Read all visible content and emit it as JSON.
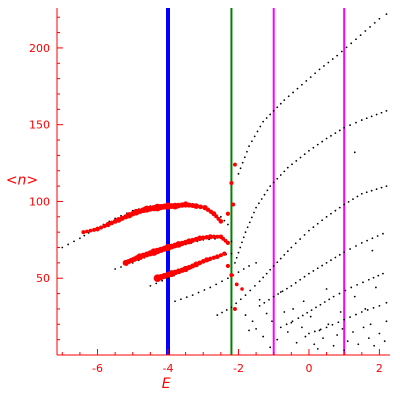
{
  "chart_data": {
    "type": "scatter",
    "title": "",
    "xlabel": "E",
    "ylabel": "<n>",
    "xlim": [
      -7.15,
      2.3
    ],
    "ylim": [
      0,
      226
    ],
    "grid": false,
    "x_ticks": [
      -6,
      -4,
      -2,
      0,
      2
    ],
    "y_ticks": [
      50,
      100,
      150,
      200
    ],
    "x_tick_labels": [
      "-6",
      "-4",
      "-2",
      "0",
      "2"
    ],
    "y_tick_labels": [
      "50",
      "100",
      "150",
      "200"
    ],
    "colors": {
      "axis": "#ff0000",
      "highlighted_points": "#ff0000",
      "points": "#000000",
      "line_blue": "#0000ff",
      "line_green": "#008000",
      "line_magenta": "#ff00ff"
    },
    "vertical_lines": [
      {
        "x": -4.0,
        "color": "#0000ff",
        "width": 4
      },
      {
        "x": -2.2,
        "color": "#008000",
        "width": 2
      },
      {
        "x": -1.0,
        "color": "#ff00ff",
        "width": 2
      },
      {
        "x": 1.0,
        "color": "#ff00ff",
        "width": 2
      }
    ],
    "branches": [
      {
        "color": "#000000",
        "size_scale": 0,
        "points": [
          [
            -7.0,
            70
          ],
          [
            -6.5,
            76
          ],
          [
            -6.0,
            83
          ],
          [
            -5.5,
            89
          ],
          [
            -5.0,
            94
          ],
          [
            -4.5,
            97
          ],
          [
            -4.0,
            98
          ],
          [
            -3.5,
            98
          ],
          [
            -3.0,
            96
          ],
          [
            -2.5,
            90
          ],
          [
            -2.3,
            85
          ]
        ]
      },
      {
        "color": "#000000",
        "size_scale": 0,
        "points": [
          [
            -5.5,
            56
          ],
          [
            -5.0,
            60
          ],
          [
            -4.5,
            65
          ],
          [
            -4.0,
            69
          ],
          [
            -3.5,
            72
          ],
          [
            -3.0,
            75
          ],
          [
            -2.5,
            76
          ],
          [
            -2.2,
            74
          ]
        ]
      },
      {
        "color": "#000000",
        "size_scale": 0,
        "points": [
          [
            -4.5,
            45
          ],
          [
            -4.0,
            50
          ],
          [
            -3.5,
            55
          ],
          [
            -3.0,
            60
          ],
          [
            -2.5,
            65
          ],
          [
            -2.2,
            66
          ]
        ]
      },
      {
        "color": "#000000",
        "size_scale": 0,
        "points": [
          [
            -3.8,
            35
          ],
          [
            -3.3,
            39
          ],
          [
            -2.8,
            44
          ],
          [
            -2.3,
            50
          ],
          [
            -2.0,
            54
          ],
          [
            -1.7,
            58
          ],
          [
            -1.5,
            60
          ]
        ]
      },
      {
        "color": "#000000",
        "size_scale": 0,
        "points": [
          [
            -2.6,
            26
          ],
          [
            -2.2,
            31
          ],
          [
            -1.8,
            39
          ],
          [
            -1.4,
            48
          ],
          [
            -1.0,
            58
          ],
          [
            -0.5,
            70
          ],
          [
            0.0,
            81
          ],
          [
            0.5,
            90
          ],
          [
            1.0,
            98
          ],
          [
            1.5,
            105
          ],
          [
            2.2,
            110
          ]
        ]
      },
      {
        "color": "#000000",
        "size_scale": 0,
        "points": [
          [
            -2.1,
            60
          ],
          [
            -1.8,
            80
          ],
          [
            -1.5,
            96
          ],
          [
            -1.1,
            110
          ],
          [
            -0.6,
            122
          ],
          [
            0.0,
            133
          ],
          [
            0.5,
            141
          ],
          [
            1.0,
            148
          ],
          [
            1.5,
            153
          ],
          [
            2.2,
            159
          ]
        ]
      },
      {
        "color": "#000000",
        "size_scale": 0,
        "points": [
          [
            -2.0,
            118
          ],
          [
            -1.7,
            136
          ],
          [
            -1.3,
            152
          ],
          [
            -0.7,
            166
          ],
          [
            -0.2,
            176
          ],
          [
            0.3,
            186
          ],
          [
            0.8,
            195
          ],
          [
            1.2,
            203
          ],
          [
            1.6,
            211
          ],
          [
            2.0,
            219
          ],
          [
            2.2,
            222
          ]
        ]
      },
      {
        "color": "#000000",
        "size_scale": 0,
        "points": [
          [
            -1.4,
            32
          ],
          [
            -1.0,
            38
          ],
          [
            -0.5,
            45
          ],
          [
            0.0,
            53
          ],
          [
            0.5,
            60
          ],
          [
            1.0,
            67
          ],
          [
            1.5,
            73
          ],
          [
            2.1,
            79
          ]
        ]
      },
      {
        "color": "#000000",
        "size_scale": 0,
        "points": [
          [
            -0.8,
            18
          ],
          [
            -0.3,
            24
          ],
          [
            0.2,
            31
          ],
          [
            0.7,
            38
          ],
          [
            1.2,
            44
          ],
          [
            1.7,
            49
          ],
          [
            2.1,
            53
          ]
        ]
      },
      {
        "color": "#000000",
        "size_scale": 0,
        "points": [
          [
            0.0,
            14
          ],
          [
            0.5,
            18
          ],
          [
            1.0,
            23
          ],
          [
            1.5,
            28
          ],
          [
            2.0,
            32
          ],
          [
            2.2,
            34
          ]
        ]
      },
      {
        "color": "#ff0000",
        "size_scale": 1,
        "points": [
          [
            -6.4,
            80
          ],
          [
            -6.0,
            82
          ],
          [
            -5.7,
            85
          ],
          [
            -5.4,
            88
          ],
          [
            -5.1,
            91
          ],
          [
            -4.9,
            93
          ],
          [
            -4.6,
            95
          ],
          [
            -4.3,
            96
          ],
          [
            -4.0,
            97
          ],
          [
            -3.8,
            97
          ],
          [
            -3.5,
            98
          ],
          [
            -3.2,
            97
          ],
          [
            -2.95,
            96
          ],
          [
            -2.7,
            92
          ],
          [
            -2.5,
            87
          ]
        ]
      },
      {
        "color": "#ff0000",
        "size_scale": 1,
        "points": [
          [
            -5.2,
            60
          ],
          [
            -4.8,
            64
          ],
          [
            -4.4,
            67
          ],
          [
            -4.0,
            70
          ],
          [
            -3.7,
            72
          ],
          [
            -3.4,
            74
          ],
          [
            -3.1,
            76
          ],
          [
            -2.8,
            77
          ],
          [
            -2.5,
            77
          ],
          [
            -2.3,
            73
          ]
        ]
      },
      {
        "color": "#ff0000",
        "size_scale": 1,
        "points": [
          [
            -4.3,
            50
          ],
          [
            -3.9,
            53
          ],
          [
            -3.5,
            56
          ],
          [
            -3.2,
            59
          ],
          [
            -2.9,
            62
          ],
          [
            -2.6,
            64
          ],
          [
            -2.4,
            66
          ]
        ]
      },
      {
        "color": "#ff0000",
        "size_scale": 1,
        "points": [
          [
            -2.2,
            112
          ],
          [
            -2.1,
            124
          ],
          [
            -2.3,
            92
          ],
          [
            -2.15,
            98
          ],
          [
            -2.3,
            58
          ],
          [
            -2.2,
            52
          ],
          [
            -2.05,
            46
          ],
          [
            -1.9,
            43
          ],
          [
            -2.1,
            30
          ]
        ]
      }
    ],
    "scattered_points": [
      [
        -1.8,
        26
      ],
      [
        -1.6,
        22
      ],
      [
        -1.5,
        17
      ],
      [
        -1.3,
        12
      ],
      [
        -1.2,
        27
      ],
      [
        -1.05,
        22
      ],
      [
        -0.9,
        10
      ],
      [
        -0.7,
        28
      ],
      [
        -0.6,
        15
      ],
      [
        -0.5,
        21
      ],
      [
        -0.35,
        8
      ],
      [
        -0.2,
        18
      ],
      [
        -0.1,
        12
      ],
      [
        0.05,
        25
      ],
      [
        0.15,
        7
      ],
      [
        0.3,
        16
      ],
      [
        0.4,
        11
      ],
      [
        0.55,
        20
      ],
      [
        0.7,
        6
      ],
      [
        0.8,
        13
      ],
      [
        0.95,
        17
      ],
      [
        1.1,
        9
      ],
      [
        1.25,
        15
      ],
      [
        1.4,
        7
      ],
      [
        1.55,
        18
      ],
      [
        1.7,
        11
      ],
      [
        1.85,
        6
      ],
      [
        2.0,
        14
      ],
      [
        2.15,
        9
      ],
      [
        -1.4,
        36
      ],
      [
        -0.8,
        41
      ],
      [
        -0.15,
        35
      ],
      [
        0.5,
        43
      ],
      [
        1.3,
        38
      ],
      [
        1.9,
        44
      ],
      [
        -1.7,
        16
      ],
      [
        -1.1,
        5
      ],
      [
        0.25,
        4
      ],
      [
        1.0,
        3
      ],
      [
        1.75,
        20
      ],
      [
        2.2,
        22
      ],
      [
        -0.45,
        30
      ],
      [
        0.9,
        28
      ],
      [
        1.6,
        30
      ],
      [
        1.3,
        132
      ],
      [
        1.8,
        68
      ]
    ]
  }
}
